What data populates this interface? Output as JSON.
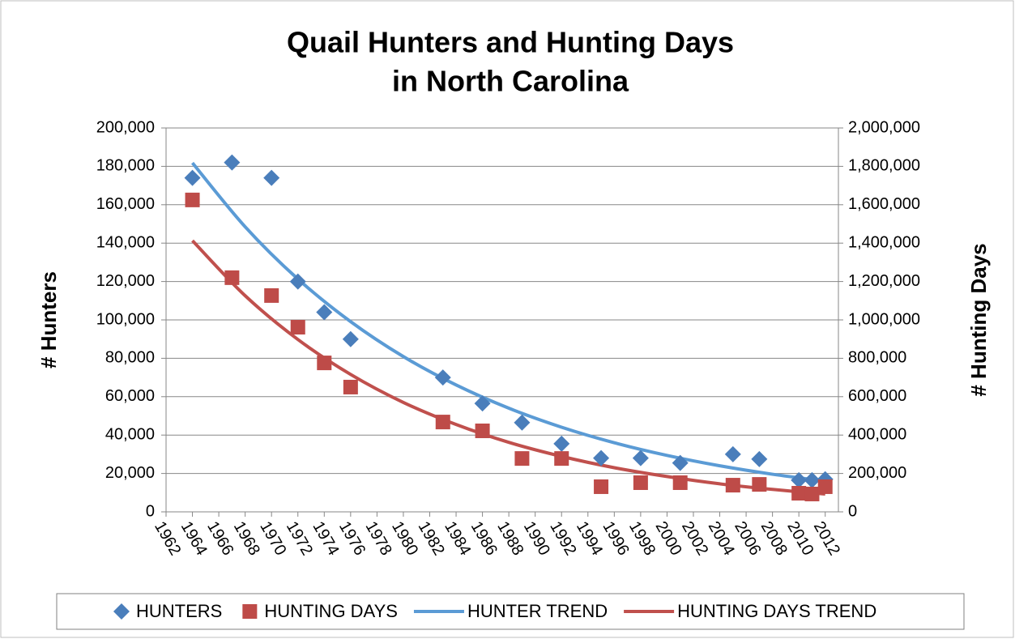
{
  "chart_data": {
    "type": "scatter",
    "title_lines": [
      "Quail Hunters and Hunting Days",
      "in North Carolina"
    ],
    "y_label": "# Hunters",
    "y2_label": "# Hunting Days",
    "xlim": [
      1962,
      2013
    ],
    "xticks": [
      1962,
      1964,
      1966,
      1968,
      1970,
      1972,
      1974,
      1976,
      1978,
      1980,
      1982,
      1984,
      1986,
      1988,
      1990,
      1992,
      1994,
      1996,
      1998,
      2000,
      2002,
      2004,
      2006,
      2008,
      2010,
      2012
    ],
    "ylim": [
      0,
      200000
    ],
    "yticks": [
      0,
      {
        "value": 20000,
        "label": "20,000"
      },
      {
        "value": 40000,
        "label": "40,000"
      },
      {
        "value": 60000,
        "label": "60,000"
      },
      {
        "value": 80000,
        "label": "80,000"
      },
      {
        "value": 100000,
        "label": "100,000"
      },
      {
        "value": 120000,
        "label": "120,000"
      },
      {
        "value": 140000,
        "label": "140,000"
      },
      {
        "value": 160000,
        "label": "160,000"
      },
      {
        "value": 180000,
        "label": "180,000"
      },
      {
        "value": 200000,
        "label": "200,000"
      }
    ],
    "y2lim": [
      0,
      2000000
    ],
    "y2ticks": [
      0,
      {
        "value": 200000,
        "label": "200,000"
      },
      {
        "value": 400000,
        "label": "400,000"
      },
      {
        "value": 600000,
        "label": "600,000"
      },
      {
        "value": 800000,
        "label": "800,000"
      },
      {
        "value": 1000000,
        "label": "1,000,000"
      },
      {
        "value": 1200000,
        "label": "1,200,000"
      },
      {
        "value": 1400000,
        "label": "1,400,000"
      },
      {
        "value": 1600000,
        "label": "1,600,000"
      },
      {
        "value": 1800000,
        "label": "1,800,000"
      },
      {
        "value": 2000000,
        "label": "2,000,000"
      }
    ],
    "grid": true,
    "legend": "bottom",
    "series": [
      {
        "name": "HUNTERS",
        "color": "#4a7ebb",
        "marker": "diamond",
        "x": [
          1964,
          1967,
          1970,
          1972,
          1974,
          1976,
          1983,
          1986,
          1989,
          1992,
          1995,
          1998,
          2001,
          2005,
          2007,
          2010,
          2011,
          2012
        ],
        "values": [
          174000,
          182000,
          174000,
          120000,
          104000,
          90000,
          70000,
          56500,
          46500,
          35500,
          28000,
          28000,
          25500,
          30000,
          27500,
          16500,
          16500,
          17000
        ]
      },
      {
        "name": "HUNTING DAYS",
        "color": "#be4b48",
        "marker": "square",
        "axis": "y2",
        "x": [
          1964,
          1967,
          1970,
          1972,
          1974,
          1976,
          1983,
          1986,
          1989,
          1992,
          1995,
          1998,
          2001,
          2005,
          2007,
          2010,
          2011,
          2012
        ],
        "values": [
          1625000,
          1220000,
          1127000,
          962000,
          776000,
          650000,
          468000,
          422000,
          278000,
          278000,
          131000,
          152000,
          152000,
          139000,
          143000,
          97000,
          93000,
          131000
        ]
      },
      {
        "name": "HUNTER TREND",
        "color": "#5b9bd5",
        "marker": "line",
        "x": [
          1964,
          1968,
          1972,
          1976,
          1980,
          1984,
          1988,
          1992,
          1996,
          2000,
          2004,
          2008,
          2012
        ],
        "values": [
          181800,
          148500,
          121300,
          99100,
          80900,
          66100,
          54000,
          44100,
          36000,
          29400,
          24000,
          19600,
          16000
        ]
      },
      {
        "name": "HUNTING DAYS TREND",
        "color": "#c0504d",
        "marker": "line",
        "axis": "y2",
        "x": [
          1964,
          1968,
          1972,
          1976,
          1980,
          1984,
          1988,
          1992,
          1996,
          2000,
          2004,
          2008,
          2012
        ],
        "values": [
          1413000,
          1126000,
          898000,
          716000,
          570000,
          455000,
          362000,
          289000,
          230000,
          184000,
          146000,
          117000,
          93000
        ]
      }
    ]
  }
}
